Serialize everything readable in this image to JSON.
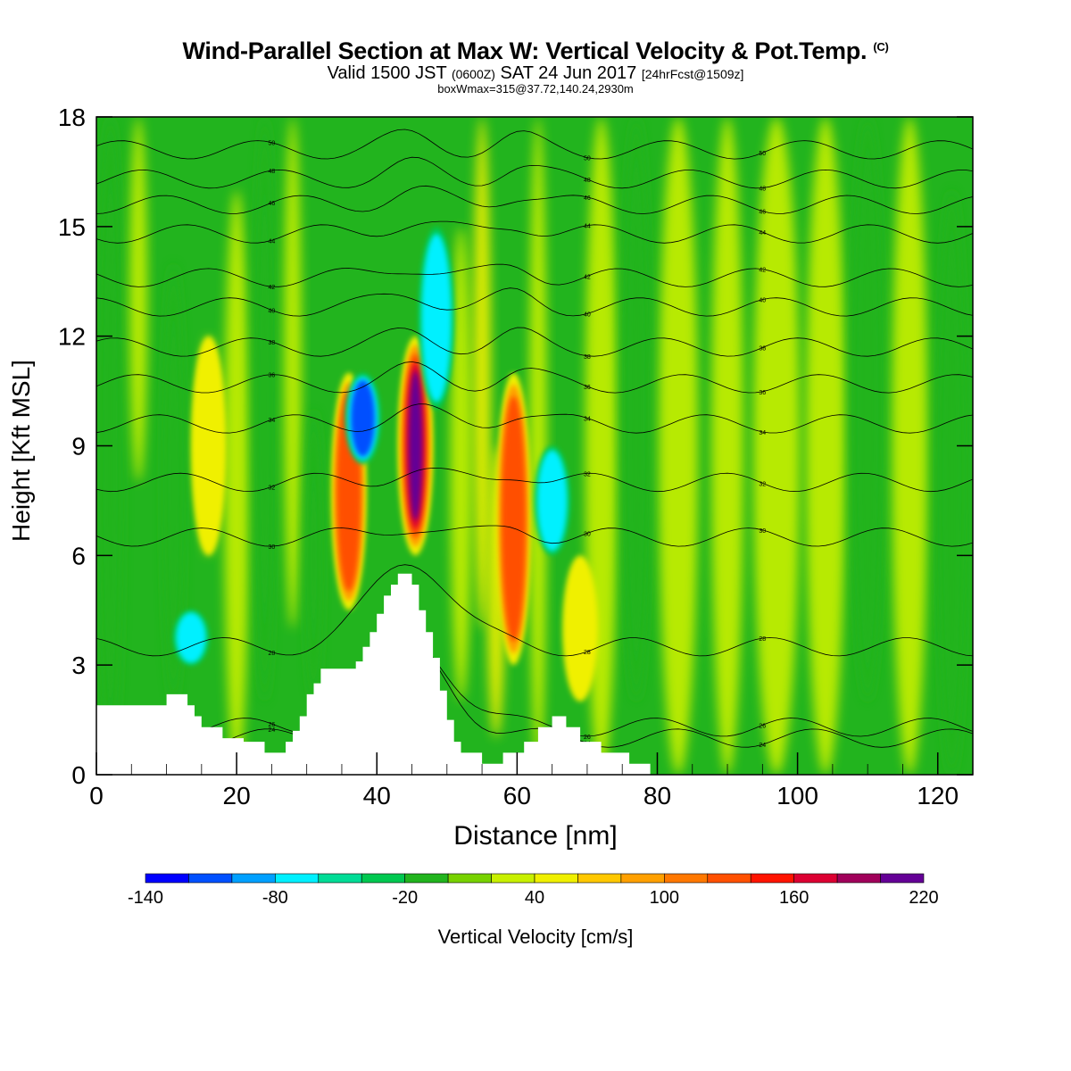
{
  "header": {
    "title": "Wind-Parallel Section at Max W: Vertical Velocity & Pot.Temp.",
    "copyright": "(C)",
    "subtitle_valid": "Valid 1500 JST",
    "subtitle_utc": "(0600Z)",
    "subtitle_date": "SAT 24 Jun 2017",
    "subtitle_fcst": "[24hrFcst@1509z]",
    "subtitle_box": "boxWmax=315@37.72,140.24,2930m"
  },
  "chart_data": {
    "type": "heatmap",
    "xlabel": "Distance [nm]",
    "ylabel": "Height [Kft MSL]",
    "xlim": [
      0,
      125
    ],
    "ylim": [
      0,
      18
    ],
    "xticks": [
      0,
      20,
      40,
      60,
      80,
      100,
      120
    ],
    "yticks": [
      0,
      3,
      6,
      9,
      12,
      15,
      18
    ],
    "colorbar": {
      "label": "Vertical Velocity [cm/s]",
      "range": [
        -140,
        220
      ],
      "tick_labels": [
        -140,
        -80,
        -20,
        40,
        100,
        160,
        220
      ],
      "colors": [
        "#0000ff",
        "#0050ff",
        "#00a0ff",
        "#00f0ff",
        "#00dc96",
        "#00c850",
        "#22b41e",
        "#78d200",
        "#c8f000",
        "#f0f000",
        "#ffc800",
        "#ffa000",
        "#ff7800",
        "#ff5000",
        "#ff1400",
        "#dc0032",
        "#a0005a",
        "#640096"
      ]
    },
    "updrafts": [
      {
        "x": 45.5,
        "ymin": 6.0,
        "ymax": 12.0,
        "peak": 220
      },
      {
        "x": 36.0,
        "ymin": 4.5,
        "ymax": 11.0,
        "peak": 160
      },
      {
        "x": 59.5,
        "ymin": 3.0,
        "ymax": 11.0,
        "peak": 160
      },
      {
        "x": 69.0,
        "ymin": 2.0,
        "ymax": 6.0,
        "peak": 40
      },
      {
        "x": 16.0,
        "ymin": 6.0,
        "ymax": 12.0,
        "peak": 40
      }
    ],
    "downdrafts": [
      {
        "x": 38.0,
        "ymin": 8.5,
        "ymax": 11.0,
        "peak": -140
      },
      {
        "x": 48.5,
        "ymin": 10.0,
        "ymax": 15.0,
        "peak": -80
      },
      {
        "x": 65.0,
        "ymin": 6.0,
        "ymax": 9.0,
        "peak": -80
      },
      {
        "x": 13.5,
        "ymin": 3.0,
        "ymax": 4.5,
        "peak": -80
      }
    ],
    "theta_contours": [
      {
        "theta": 24,
        "y": 1.0
      },
      {
        "theta": 26,
        "y": 1.3
      },
      {
        "theta": 28,
        "y": 3.5
      },
      {
        "theta": 30,
        "y": 6.5
      },
      {
        "theta": 32,
        "y": 8.0
      },
      {
        "theta": 34,
        "y": 9.6
      },
      {
        "theta": 36,
        "y": 10.7
      },
      {
        "theta": 38,
        "y": 11.7
      },
      {
        "theta": 40,
        "y": 12.8
      },
      {
        "theta": 42,
        "y": 13.6
      },
      {
        "theta": 44,
        "y": 14.8
      },
      {
        "theta": 46,
        "y": 15.6
      },
      {
        "theta": 48,
        "y": 16.3
      },
      {
        "theta": 50,
        "y": 17.1
      }
    ],
    "terrain": [
      [
        0,
        1.9
      ],
      [
        10,
        1.9
      ],
      [
        10,
        2.2
      ],
      [
        13,
        2.2
      ],
      [
        13,
        1.9
      ],
      [
        14,
        1.9
      ],
      [
        14,
        1.6
      ],
      [
        15,
        1.6
      ],
      [
        15,
        1.3
      ],
      [
        18,
        1.3
      ],
      [
        18,
        1.0
      ],
      [
        21,
        1.0
      ],
      [
        21,
        0.9
      ],
      [
        24,
        0.9
      ],
      [
        24,
        0.6
      ],
      [
        27,
        0.6
      ],
      [
        27,
        0.9
      ],
      [
        28,
        0.9
      ],
      [
        28,
        1.2
      ],
      [
        29,
        1.2
      ],
      [
        29,
        1.6
      ],
      [
        30,
        1.6
      ],
      [
        30,
        2.2
      ],
      [
        31,
        2.2
      ],
      [
        31,
        2.5
      ],
      [
        32,
        2.5
      ],
      [
        32,
        2.9
      ],
      [
        37,
        2.9
      ],
      [
        37,
        3.1
      ],
      [
        38,
        3.1
      ],
      [
        38,
        3.5
      ],
      [
        39,
        3.5
      ],
      [
        39,
        3.9
      ],
      [
        40,
        3.9
      ],
      [
        40,
        4.4
      ],
      [
        41,
        4.4
      ],
      [
        41,
        4.9
      ],
      [
        42,
        4.9
      ],
      [
        42,
        5.2
      ],
      [
        43,
        5.2
      ],
      [
        43,
        5.5
      ],
      [
        45,
        5.5
      ],
      [
        45,
        5.2
      ],
      [
        46,
        5.2
      ],
      [
        46,
        4.5
      ],
      [
        47,
        4.5
      ],
      [
        47,
        3.9
      ],
      [
        48,
        3.9
      ],
      [
        48,
        3.2
      ],
      [
        49,
        3.2
      ],
      [
        49,
        2.3
      ],
      [
        50,
        2.3
      ],
      [
        50,
        1.5
      ],
      [
        51,
        1.5
      ],
      [
        51,
        0.9
      ],
      [
        52,
        0.9
      ],
      [
        52,
        0.6
      ],
      [
        55,
        0.6
      ],
      [
        55,
        0.3
      ],
      [
        58,
        0.3
      ],
      [
        58,
        0.6
      ],
      [
        61,
        0.6
      ],
      [
        61,
        0.9
      ],
      [
        63,
        0.9
      ],
      [
        63,
        1.3
      ],
      [
        65,
        1.3
      ],
      [
        65,
        1.6
      ],
      [
        67,
        1.6
      ],
      [
        67,
        1.3
      ],
      [
        69,
        1.3
      ],
      [
        69,
        0.9
      ],
      [
        72,
        0.9
      ],
      [
        72,
        0.6
      ],
      [
        76,
        0.6
      ],
      [
        76,
        0.3
      ],
      [
        79,
        0.3
      ],
      [
        79,
        0.0
      ],
      [
        125,
        0.0
      ]
    ]
  }
}
